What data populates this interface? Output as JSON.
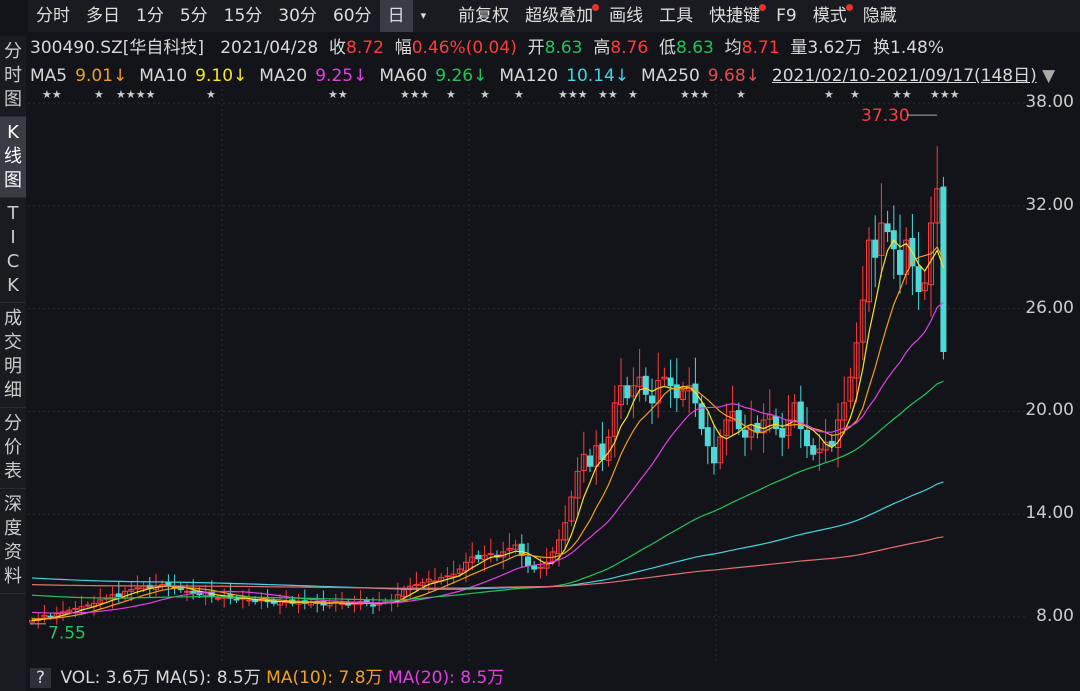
{
  "toolbar": {
    "items": [
      "分时",
      "多日",
      "1分",
      "5分",
      "15分",
      "30分",
      "60分",
      "日",
      "▾",
      "前复权",
      "超级叠加",
      "画线",
      "工具",
      "快捷键",
      "F9",
      "模式",
      "隐藏"
    ],
    "active": 7,
    "dots": [
      10,
      13,
      15
    ]
  },
  "sidebar": {
    "items": [
      "分\n时\n图",
      "K\n线\n图",
      "T\nI\nC\nK",
      "成\n交\n明\n细",
      "分\n价\n表",
      "深\n度\n资\n料"
    ],
    "active": 1
  },
  "info": {
    "code": "300490.SZ[华自科技]",
    "date": "2021/04/28",
    "close_label": "收",
    "close": "8.72",
    "change_label": "幅",
    "change": "0.46%(0.04)",
    "open_label": "开",
    "open": "8.63",
    "high_label": "高",
    "high": "8.76",
    "low_label": "低",
    "low": "8.63",
    "avg_label": "均",
    "avg": "8.71",
    "vol_label": "量",
    "vol": "3.62万",
    "turn_label": "换",
    "turn": "1.48%"
  },
  "ma": [
    {
      "name": "MA5",
      "value": "9.01↓",
      "color": "#f0a020"
    },
    {
      "name": "MA10",
      "value": "9.10↓",
      "color": "#f5e52a"
    },
    {
      "name": "MA20",
      "value": "9.25↓",
      "color": "#e040e0"
    },
    {
      "name": "MA60",
      "value": "9.26↓",
      "color": "#22c35a"
    },
    {
      "name": "MA120",
      "value": "10.14↓",
      "color": "#45d4e0"
    },
    {
      "name": "MA250",
      "value": "9.68↓",
      "color": "#e05050"
    }
  ],
  "range": "2021/02/10-2021/09/17(148日)",
  "volume": {
    "help": "?",
    "vol": "VOL: 3.6万",
    "ma5": "MA(5): 8.5万",
    "ma10": "MA(10): 7.8万",
    "ma20": "MA(20): 8.5万"
  },
  "chart_data": {
    "type": "candlestick",
    "yticks": [
      "38.00",
      "32.00",
      "26.00",
      "20.00",
      "14.00",
      "8.00"
    ],
    "ylim": [
      8,
      38
    ],
    "max_label": "37.30",
    "min_label": "7.55",
    "closes": [
      7.8,
      7.9,
      8.1,
      8.0,
      8.2,
      8.3,
      8.4,
      8.5,
      8.6,
      8.7,
      8.8,
      9.0,
      9.1,
      9.3,
      9.2,
      9.5,
      9.6,
      9.7,
      9.8,
      9.7,
      9.8,
      9.9,
      9.8,
      9.7,
      9.6,
      9.5,
      9.4,
      9.3,
      9.4,
      9.2,
      9.1,
      9.2,
      9.1,
      9.0,
      9.1,
      9.0,
      8.9,
      9.0,
      8.9,
      8.8,
      8.9,
      8.9,
      8.8,
      8.9,
      8.8,
      8.9,
      8.8,
      8.7,
      8.8,
      8.9,
      8.8,
      8.7,
      8.8,
      8.9,
      8.8,
      8.7,
      8.8,
      8.9,
      8.9,
      9.3,
      9.6,
      9.8,
      9.9,
      10.0,
      10.2,
      10.1,
      10.3,
      10.4,
      10.5,
      10.8,
      11.2,
      11.5,
      11.4,
      11.6,
      11.7,
      11.5,
      11.8,
      12.0,
      12.2,
      11.6,
      11.0,
      10.8,
      10.9,
      11.2,
      11.8,
      12.5,
      13.5,
      15.0,
      16.5,
      17.5,
      16.8,
      18.0,
      17.2,
      18.5,
      20.5,
      21.5,
      20.8,
      21.5,
      22.0,
      21.0,
      20.5,
      21.8,
      22.0,
      21.5,
      20.8,
      21.2,
      21.5,
      20.5,
      19.0,
      18.0,
      17.0,
      18.5,
      19.5,
      20.0,
      19.0,
      18.5,
      19.2,
      18.8,
      19.5,
      19.8,
      19.0,
      18.5,
      19.5,
      20.5,
      19.0,
      18.0,
      17.5,
      17.8,
      18.2,
      18.0,
      19.5,
      20.5,
      22.0,
      24.0,
      26.5,
      30.0,
      29.0,
      31.0,
      30.5,
      29.5,
      28.0,
      30.0,
      28.5,
      27.0,
      27.5,
      31.0,
      33.0,
      23.5
    ]
  }
}
